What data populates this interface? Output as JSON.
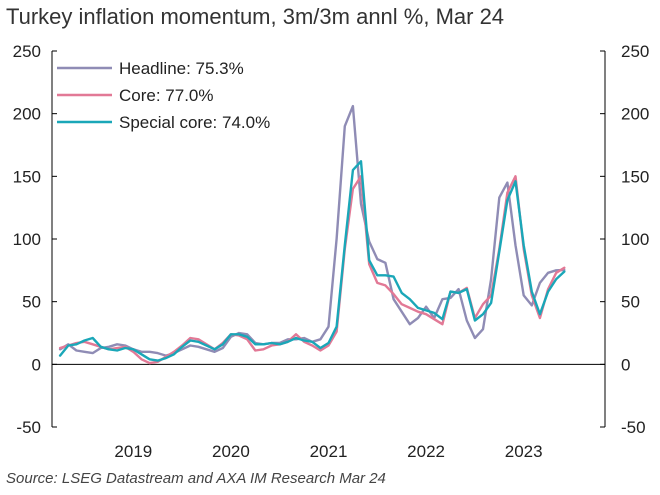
{
  "title": "Turkey inflation momentum, 3m/3m annl %, Mar 24",
  "source": "Source: LSEG Datastream and AXA IM Research Mar 24",
  "chart_data": {
    "type": "line",
    "ylim": [
      -50,
      250
    ],
    "yticks": [
      -50,
      0,
      50,
      100,
      150,
      200,
      250
    ],
    "ytick_labels": [
      "-50",
      "0",
      "50",
      "100",
      "150",
      "200",
      "250"
    ],
    "xlim": [
      "2018-09",
      "2024-05"
    ],
    "year_labels": [
      "2019",
      "2020",
      "2021",
      "2022",
      "2023"
    ],
    "grid": false,
    "legend_position": "top-left",
    "series": [
      {
        "name": "Headline: 75.3%",
        "color": "#8f8cb5",
        "points": [
          [
            "2018-10",
            12
          ],
          [
            "2018-11",
            16
          ],
          [
            "2018-12",
            11
          ],
          [
            "2019-01",
            10
          ],
          [
            "2019-02",
            9
          ],
          [
            "2019-03",
            13
          ],
          [
            "2019-04",
            14
          ],
          [
            "2019-05",
            16
          ],
          [
            "2019-06",
            15
          ],
          [
            "2019-07",
            12
          ],
          [
            "2019-08",
            10
          ],
          [
            "2019-09",
            10
          ],
          [
            "2019-10",
            9
          ],
          [
            "2019-11",
            7
          ],
          [
            "2019-12",
            9
          ],
          [
            "2020-01",
            12
          ],
          [
            "2020-02",
            15
          ],
          [
            "2020-03",
            14
          ],
          [
            "2020-04",
            12
          ],
          [
            "2020-05",
            10
          ],
          [
            "2020-06",
            13
          ],
          [
            "2020-07",
            22
          ],
          [
            "2020-08",
            25
          ],
          [
            "2020-09",
            24
          ],
          [
            "2020-10",
            17
          ],
          [
            "2020-11",
            16
          ],
          [
            "2020-12",
            17
          ],
          [
            "2021-01",
            17
          ],
          [
            "2021-02",
            20
          ],
          [
            "2021-03",
            20
          ],
          [
            "2021-04",
            21
          ],
          [
            "2021-05",
            18
          ],
          [
            "2021-06",
            20
          ],
          [
            "2021-07",
            30
          ],
          [
            "2021-08",
            100
          ],
          [
            "2021-09",
            190
          ],
          [
            "2021-10",
            206
          ],
          [
            "2021-11",
            128
          ],
          [
            "2021-12",
            98
          ],
          [
            "2022-01",
            84
          ],
          [
            "2022-02",
            81
          ],
          [
            "2022-03",
            52
          ],
          [
            "2022-04",
            42
          ],
          [
            "2022-05",
            32
          ],
          [
            "2022-06",
            37
          ],
          [
            "2022-07",
            46
          ],
          [
            "2022-08",
            37
          ],
          [
            "2022-09",
            52
          ],
          [
            "2022-10",
            53
          ],
          [
            "2022-11",
            60
          ],
          [
            "2022-12",
            35
          ],
          [
            "2023-01",
            21
          ],
          [
            "2023-02",
            28
          ],
          [
            "2023-03",
            68
          ],
          [
            "2023-04",
            133
          ],
          [
            "2023-05",
            145
          ],
          [
            "2023-06",
            95
          ],
          [
            "2023-07",
            55
          ],
          [
            "2023-08",
            47
          ],
          [
            "2023-09",
            65
          ],
          [
            "2023-10",
            73
          ],
          [
            "2023-11",
            75
          ],
          [
            "2023-12",
            75.3
          ]
        ]
      },
      {
        "name": "Core: 77.0%",
        "color": "#e27996",
        "points": [
          [
            "2018-10",
            13
          ],
          [
            "2018-11",
            15
          ],
          [
            "2018-12",
            17
          ],
          [
            "2019-01",
            18
          ],
          [
            "2019-02",
            16
          ],
          [
            "2019-03",
            14
          ],
          [
            "2019-04",
            12
          ],
          [
            "2019-05",
            13
          ],
          [
            "2019-06",
            14
          ],
          [
            "2019-07",
            10
          ],
          [
            "2019-08",
            4
          ],
          [
            "2019-09",
            1
          ],
          [
            "2019-10",
            2
          ],
          [
            "2019-11",
            6
          ],
          [
            "2019-12",
            10
          ],
          [
            "2020-01",
            15
          ],
          [
            "2020-02",
            21
          ],
          [
            "2020-03",
            20
          ],
          [
            "2020-04",
            16
          ],
          [
            "2020-05",
            12
          ],
          [
            "2020-06",
            17
          ],
          [
            "2020-07",
            24
          ],
          [
            "2020-08",
            23
          ],
          [
            "2020-09",
            20
          ],
          [
            "2020-10",
            11
          ],
          [
            "2020-11",
            12
          ],
          [
            "2020-12",
            15
          ],
          [
            "2021-01",
            16
          ],
          [
            "2021-02",
            18
          ],
          [
            "2021-03",
            24
          ],
          [
            "2021-04",
            18
          ],
          [
            "2021-05",
            15
          ],
          [
            "2021-06",
            11
          ],
          [
            "2021-07",
            15
          ],
          [
            "2021-08",
            26
          ],
          [
            "2021-09",
            92
          ],
          [
            "2021-10",
            140
          ],
          [
            "2021-11",
            150
          ],
          [
            "2021-12",
            80
          ],
          [
            "2022-01",
            65
          ],
          [
            "2022-02",
            63
          ],
          [
            "2022-03",
            56
          ],
          [
            "2022-04",
            48
          ],
          [
            "2022-05",
            45
          ],
          [
            "2022-06",
            42
          ],
          [
            "2022-07",
            40
          ],
          [
            "2022-08",
            36
          ],
          [
            "2022-09",
            32
          ],
          [
            "2022-10",
            58
          ],
          [
            "2022-11",
            57
          ],
          [
            "2022-12",
            61
          ],
          [
            "2023-01",
            37
          ],
          [
            "2023-02",
            48
          ],
          [
            "2023-03",
            55
          ],
          [
            "2023-04",
            92
          ],
          [
            "2023-05",
            137
          ],
          [
            "2023-06",
            150
          ],
          [
            "2023-07",
            92
          ],
          [
            "2023-08",
            55
          ],
          [
            "2023-09",
            37
          ],
          [
            "2023-10",
            60
          ],
          [
            "2023-11",
            73
          ],
          [
            "2023-12",
            77
          ]
        ]
      },
      {
        "name": "Special core: 74.0%",
        "color": "#1aa7b8",
        "points": [
          [
            "2018-10",
            7
          ],
          [
            "2018-11",
            15
          ],
          [
            "2018-12",
            16
          ],
          [
            "2019-01",
            19
          ],
          [
            "2019-02",
            21
          ],
          [
            "2019-03",
            14
          ],
          [
            "2019-04",
            12
          ],
          [
            "2019-05",
            11
          ],
          [
            "2019-06",
            13
          ],
          [
            "2019-07",
            12
          ],
          [
            "2019-08",
            8
          ],
          [
            "2019-09",
            4
          ],
          [
            "2019-10",
            3
          ],
          [
            "2019-11",
            5
          ],
          [
            "2019-12",
            8
          ],
          [
            "2020-01",
            14
          ],
          [
            "2020-02",
            19
          ],
          [
            "2020-03",
            18
          ],
          [
            "2020-04",
            15
          ],
          [
            "2020-05",
            12
          ],
          [
            "2020-06",
            16
          ],
          [
            "2020-07",
            24
          ],
          [
            "2020-08",
            24
          ],
          [
            "2020-09",
            22
          ],
          [
            "2020-10",
            16
          ],
          [
            "2020-11",
            16
          ],
          [
            "2020-12",
            17
          ],
          [
            "2021-01",
            16
          ],
          [
            "2021-02",
            18
          ],
          [
            "2021-03",
            21
          ],
          [
            "2021-04",
            19
          ],
          [
            "2021-05",
            18
          ],
          [
            "2021-06",
            13
          ],
          [
            "2021-07",
            17
          ],
          [
            "2021-08",
            30
          ],
          [
            "2021-09",
            95
          ],
          [
            "2021-10",
            155
          ],
          [
            "2021-11",
            162
          ],
          [
            "2021-12",
            83
          ],
          [
            "2022-01",
            71
          ],
          [
            "2022-02",
            71
          ],
          [
            "2022-03",
            70
          ],
          [
            "2022-04",
            57
          ],
          [
            "2022-05",
            52
          ],
          [
            "2022-06",
            45
          ],
          [
            "2022-07",
            43
          ],
          [
            "2022-08",
            41
          ],
          [
            "2022-09",
            36
          ],
          [
            "2022-10",
            58
          ],
          [
            "2022-11",
            57
          ],
          [
            "2022-12",
            60
          ],
          [
            "2023-01",
            35
          ],
          [
            "2023-02",
            40
          ],
          [
            "2023-03",
            49
          ],
          [
            "2023-04",
            90
          ],
          [
            "2023-05",
            131
          ],
          [
            "2023-06",
            146
          ],
          [
            "2023-07",
            95
          ],
          [
            "2023-08",
            58
          ],
          [
            "2023-09",
            40
          ],
          [
            "2023-10",
            58
          ],
          [
            "2023-11",
            68
          ],
          [
            "2023-12",
            74
          ]
        ]
      }
    ]
  }
}
